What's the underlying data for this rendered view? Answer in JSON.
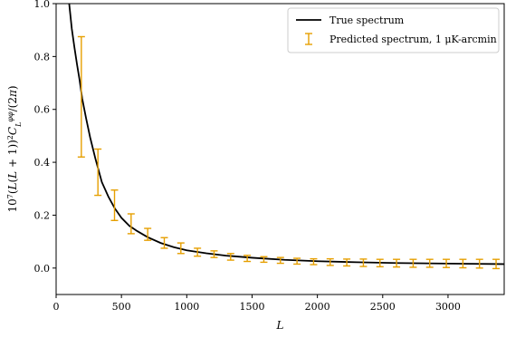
{
  "chart_data": {
    "type": "line",
    "title": "",
    "xlabel": "L",
    "ylabel": "10^7 (L(L+1))^2 C_L^{φφ} / (2π)",
    "xlim": [
      0,
      3430
    ],
    "ylim": [
      -0.1,
      1.0
    ],
    "xticks": [
      0,
      500,
      1000,
      1500,
      2000,
      2500,
      3000
    ],
    "xtick_labels": [
      "0",
      "500",
      "1000",
      "1500",
      "2000",
      "2500",
      "3000"
    ],
    "yticks": [
      0.0,
      0.2,
      0.4,
      0.6,
      0.8,
      1.0
    ],
    "ytick_labels": [
      "0.0",
      "0.2",
      "0.4",
      "0.6",
      "0.8",
      "1.0"
    ],
    "grid": false,
    "legend_position": "top-right",
    "legend": [
      "True spectrum",
      "Predicted spectrum, 1 μK-arcmin"
    ],
    "series": [
      {
        "name": "True spectrum",
        "kind": "line",
        "color": "#000000",
        "x": [
          100,
          120,
          140,
          160,
          180,
          200,
          230,
          260,
          300,
          350,
          400,
          450,
          500,
          560,
          620,
          700,
          800,
          900,
          1000,
          1150,
          1300,
          1500,
          1750,
          2000,
          2300,
          2600,
          3000,
          3430
        ],
        "y": [
          1.0,
          0.905,
          0.835,
          0.77,
          0.71,
          0.64,
          0.565,
          0.495,
          0.415,
          0.325,
          0.27,
          0.225,
          0.19,
          0.16,
          0.14,
          0.117,
          0.095,
          0.079,
          0.067,
          0.056,
          0.047,
          0.039,
          0.031,
          0.026,
          0.022,
          0.019,
          0.017,
          0.015
        ]
      },
      {
        "name": "Predicted spectrum, 1 μK-arcmin",
        "kind": "errorbar",
        "color": "#e69f00",
        "x": [
          193,
          320,
          447,
          574,
          701,
          828,
          955,
          1082,
          1209,
          1336,
          1463,
          1590,
          1717,
          1844,
          1971,
          2098,
          2225,
          2352,
          2479,
          2606,
          2733,
          2860,
          2987,
          3114,
          3241,
          3368
        ],
        "y_low": [
          0.42,
          0.275,
          0.18,
          0.13,
          0.105,
          0.075,
          0.055,
          0.045,
          0.04,
          0.03,
          0.025,
          0.022,
          0.018,
          0.015,
          0.013,
          0.01,
          0.008,
          0.006,
          0.005,
          0.004,
          0.003,
          0.003,
          0.002,
          0.001,
          0.0,
          -0.002
        ],
        "y_high": [
          0.875,
          0.45,
          0.295,
          0.205,
          0.15,
          0.115,
          0.095,
          0.075,
          0.065,
          0.055,
          0.048,
          0.043,
          0.04,
          0.037,
          0.035,
          0.035,
          0.034,
          0.034,
          0.033,
          0.033,
          0.033,
          0.033,
          0.033,
          0.033,
          0.033,
          0.033
        ]
      }
    ]
  }
}
